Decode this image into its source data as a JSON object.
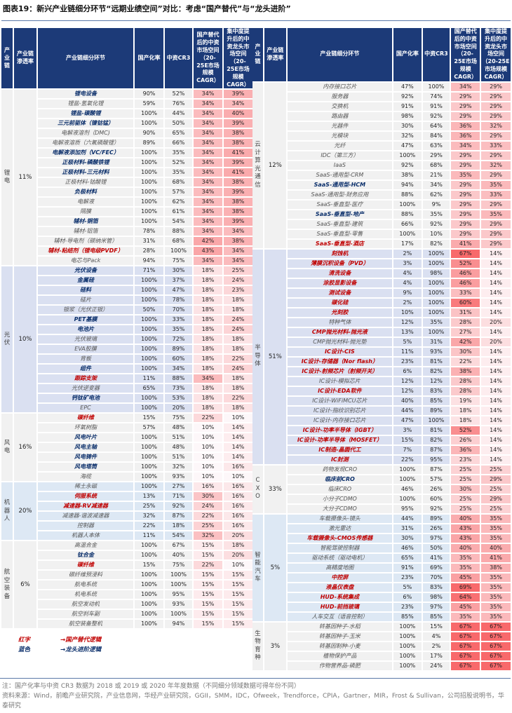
{
  "title": "图表19：新兴产业链细分环节“远期业绩空间”对比：考虑“国产替代”与“龙头进阶”",
  "headers": [
    "产业链",
    "产业链渗透率",
    "产业链细分环节",
    "国产化率",
    "中资CR3",
    "国产替代后的中资市场空间（20-25E市场规模CAGR）",
    "集中度提升后的中资龙头市场空间（20-25E市场规模CAGR）"
  ],
  "left": [
    {
      "industry": "锂电",
      "cagr": "11%",
      "rows": [
        [
          "锂电设备",
          "90%",
          "52%",
          "34%",
          "39%",
          "b"
        ],
        [
          "锂盐-氢氧化锂",
          "59%",
          "76%",
          "34%",
          "34%",
          "n"
        ],
        [
          "锂盐-碳酸锂",
          "100%",
          "44%",
          "34%",
          "40%",
          "b"
        ],
        [
          "三元前驱体（镍钴锰）",
          "100%",
          "50%",
          "34%",
          "39%",
          "b"
        ],
        [
          "电解液溶剂（DMC)",
          "90%",
          "65%",
          "34%",
          "38%",
          "n"
        ],
        [
          "电解液溶质（六氟磷酸锂）",
          "89%",
          "66%",
          "34%",
          "38%",
          "n"
        ],
        [
          "电解液添加剂（VC/FEC）",
          "100%",
          "35%",
          "34%",
          "41%",
          "b"
        ],
        [
          "正极材料-磷酸铁锂",
          "100%",
          "52%",
          "34%",
          "39%",
          "b"
        ],
        [
          "正极材料-三元材料",
          "100%",
          "35%",
          "34%",
          "41%",
          "b"
        ],
        [
          "正极材料-钴酸锂",
          "100%",
          "68%",
          "34%",
          "38%",
          "n"
        ],
        [
          "负极材料",
          "100%",
          "57%",
          "34%",
          "39%",
          "b"
        ],
        [
          "电解液",
          "100%",
          "62%",
          "34%",
          "38%",
          "n"
        ],
        [
          "隔膜",
          "100%",
          "61%",
          "34%",
          "38%",
          "n"
        ],
        [
          "辅材-铜箔",
          "100%",
          "54%",
          "34%",
          "39%",
          "b"
        ],
        [
          "辅材-铝箔",
          "78%",
          "88%",
          "34%",
          "34%",
          "n"
        ],
        [
          "辅材-导电剂（碳纳米管）",
          "31%",
          "68%",
          "42%",
          "38%",
          "n"
        ],
        [
          "辅材-粘结剂（锂电级PVDF）",
          "28%",
          "100%",
          "43%",
          "34%",
          "r"
        ],
        [
          "电芯与Pack",
          "94%",
          "75%",
          "34%",
          "34%",
          "n"
        ]
      ]
    },
    {
      "industry": "光伏",
      "cagr": "10%",
      "rows": [
        [
          "光伏设备",
          "71%",
          "30%",
          "18%",
          "25%",
          "b"
        ],
        [
          "金属硅",
          "100%",
          "37%",
          "18%",
          "24%",
          "b"
        ],
        [
          "硅料",
          "100%",
          "47%",
          "18%",
          "23%",
          "b"
        ],
        [
          "硅片",
          "100%",
          "78%",
          "18%",
          "18%",
          "n"
        ],
        [
          "银浆（光伏正银）",
          "50%",
          "70%",
          "18%",
          "18%",
          "n"
        ],
        [
          "PET基膜",
          "100%",
          "33%",
          "18%",
          "24%",
          "b"
        ],
        [
          "电池片",
          "100%",
          "35%",
          "18%",
          "24%",
          "b"
        ],
        [
          "光伏玻璃",
          "100%",
          "72%",
          "18%",
          "18%",
          "n"
        ],
        [
          "EVA胶膜",
          "100%",
          "89%",
          "18%",
          "18%",
          "n"
        ],
        [
          "背板",
          "100%",
          "60%",
          "18%",
          "22%",
          "n"
        ],
        [
          "组件",
          "100%",
          "34%",
          "18%",
          "24%",
          "b"
        ],
        [
          "跟踪支架",
          "11%",
          "88%",
          "34%",
          "18%",
          "r"
        ],
        [
          "光伏逆变器",
          "65%",
          "73%",
          "18%",
          "18%",
          "n"
        ],
        [
          "钙钛矿电池",
          "100%",
          "53%",
          "18%",
          "22%",
          "b"
        ],
        [
          "EPC",
          "100%",
          "20%",
          "18%",
          "18%",
          "n"
        ]
      ]
    },
    {
      "industry": "风电",
      "cagr": "16%",
      "rows": [
        [
          "碳纤维",
          "15%",
          "75%",
          "22%",
          "10%",
          "r"
        ],
        [
          "环氧树脂",
          "57%",
          "48%",
          "10%",
          "14%",
          "n"
        ],
        [
          "风电叶片",
          "100%",
          "51%",
          "10%",
          "14%",
          "b"
        ],
        [
          "风电主轴",
          "100%",
          "48%",
          "10%",
          "14%",
          "b"
        ],
        [
          "风电铸件",
          "100%",
          "51%",
          "10%",
          "14%",
          "b"
        ],
        [
          "风电塔筒",
          "100%",
          "32%",
          "10%",
          "16%",
          "b"
        ],
        [
          "海缆",
          "100%",
          "93%",
          "10%",
          "10%",
          "n"
        ]
      ]
    },
    {
      "industry": "机器人",
      "cagr": "20%",
      "rows": [
        [
          "稀土永磁",
          "100%",
          "27%",
          "16%",
          "16%",
          "n"
        ],
        [
          "伺服系统",
          "13%",
          "71%",
          "30%",
          "16%",
          "r"
        ],
        [
          "减速器-RV减速器",
          "25%",
          "92%",
          "24%",
          "16%",
          "r"
        ],
        [
          "减速器-谐波减速器",
          "32%",
          "87%",
          "22%",
          "16%",
          "n"
        ],
        [
          "控制器",
          "22%",
          "18%",
          "25%",
          "16%",
          "n"
        ],
        [
          "机器人本体",
          "11%",
          "54%",
          "32%",
          "20%",
          "n"
        ]
      ]
    },
    {
      "industry": "航空装备",
      "cagr": "6%",
      "rows": [
        [
          "高温合金",
          "100%",
          "67%",
          "15%",
          "18%",
          "n"
        ],
        [
          "钛合金",
          "100%",
          "40%",
          "15%",
          "20%",
          "b"
        ],
        [
          "碳纤维",
          "15%",
          "75%",
          "22%",
          "10%",
          "r"
        ],
        [
          "碳纤维预浸料",
          "100%",
          "100%",
          "15%",
          "15%",
          "n"
        ],
        [
          "航电系统",
          "100%",
          "100%",
          "15%",
          "15%",
          "n"
        ],
        [
          "机电系统",
          "100%",
          "95%",
          "15%",
          "15%",
          "n"
        ],
        [
          "航空发动机",
          "100%",
          "93%",
          "15%",
          "15%",
          "n"
        ],
        [
          "航空刹车副",
          "100%",
          "100%",
          "15%",
          "15%",
          "n"
        ],
        [
          "航空装备整机",
          "100%",
          "94%",
          "15%",
          "15%",
          "n"
        ]
      ]
    }
  ],
  "right": [
    {
      "industry": "云计算光通信",
      "cagr": "12%",
      "rows": [
        [
          "内存接口芯片",
          "47%",
          "100%",
          "34%",
          "29%",
          "n"
        ],
        [
          "服务器",
          "92%",
          "74%",
          "29%",
          "29%",
          "n"
        ],
        [
          "交换机",
          "91%",
          "91%",
          "29%",
          "29%",
          "n"
        ],
        [
          "路由器",
          "98%",
          "92%",
          "29%",
          "29%",
          "n"
        ],
        [
          "光器件",
          "30%",
          "64%",
          "36%",
          "32%",
          "n"
        ],
        [
          "光模块",
          "32%",
          "84%",
          "36%",
          "29%",
          "n"
        ],
        [
          "光纤",
          "47%",
          "63%",
          "34%",
          "33%",
          "n"
        ],
        [
          "IDC（第三方）",
          "100%",
          "29%",
          "29%",
          "29%",
          "n"
        ],
        [
          "IaaS",
          "92%",
          "68%",
          "29%",
          "32%",
          "n"
        ],
        [
          "SaaS-通用型-CRM",
          "38%",
          "21%",
          "35%",
          "29%",
          "n"
        ],
        [
          "SaaS-通用型-HCM",
          "94%",
          "34%",
          "29%",
          "35%",
          "b"
        ],
        [
          "SaaS-通用型-财务应用",
          "88%",
          "62%",
          "29%",
          "33%",
          "n"
        ],
        [
          "SaaS-垂直型-医疗",
          "100%",
          "9%",
          "29%",
          "29%",
          "n"
        ],
        [
          "SaaS-垂直型-地产",
          "88%",
          "35%",
          "29%",
          "35%",
          "b"
        ],
        [
          "SaaS-垂直型-建筑",
          "66%",
          "92%",
          "29%",
          "29%",
          "n"
        ],
        [
          "SaaS-垂直型-零售",
          "100%",
          "10%",
          "29%",
          "29%",
          "n"
        ],
        [
          "SaaS-垂直型-酒店",
          "17%",
          "82%",
          "41%",
          "29%",
          "r"
        ]
      ]
    },
    {
      "industry": "半导体",
      "cagr": "51%",
      "rows": [
        [
          "刻蚀机",
          "2%",
          "100%",
          "67%",
          "14%",
          "r"
        ],
        [
          "薄膜沉积设备（PVD）",
          "3%",
          "100%",
          "52%",
          "14%",
          "r"
        ],
        [
          "清洗设备",
          "4%",
          "98%",
          "46%",
          "14%",
          "r"
        ],
        [
          "涂胶显影设备",
          "4%",
          "100%",
          "46%",
          "14%",
          "r"
        ],
        [
          "测试设备",
          "9%",
          "100%",
          "33%",
          "14%",
          "r"
        ],
        [
          "碳化硅",
          "2%",
          "100%",
          "60%",
          "14%",
          "r"
        ],
        [
          "光刻胶",
          "10%",
          "100%",
          "31%",
          "14%",
          "r"
        ],
        [
          "特种气体",
          "12%",
          "35%",
          "28%",
          "20%",
          "n"
        ],
        [
          "CMP抛光材料-抛光液",
          "13%",
          "100%",
          "27%",
          "14%",
          "r"
        ],
        [
          "CMP抛光材料-抛光垫",
          "5%",
          "31%",
          "42%",
          "20%",
          "n"
        ],
        [
          "IC设计-CIS",
          "11%",
          "93%",
          "30%",
          "14%",
          "r"
        ],
        [
          "IC设计-存储器（Nor flash）",
          "23%",
          "81%",
          "22%",
          "14%",
          "r"
        ],
        [
          "IC设计-射频芯片（射频开关）",
          "6%",
          "82%",
          "38%",
          "14%",
          "r"
        ],
        [
          "IC设计-模拟芯片",
          "12%",
          "12%",
          "28%",
          "14%",
          "n"
        ],
        [
          "IC设计-EDA软件",
          "12%",
          "83%",
          "28%",
          "14%",
          "r"
        ],
        [
          "IC设计-WiFiMCU芯片",
          "40%",
          "85%",
          "19%",
          "14%",
          "n"
        ],
        [
          "IC设计-指纹识别芯片",
          "44%",
          "89%",
          "18%",
          "14%",
          "n"
        ],
        [
          "IC设计-内存接口芯片",
          "47%",
          "100%",
          "18%",
          "14%",
          "n"
        ],
        [
          "IC设计-功率半导体（IGBT）",
          "3%",
          "81%",
          "52%",
          "14%",
          "r"
        ],
        [
          "IC设计-功率半导体（MOSFET）",
          "15%",
          "82%",
          "26%",
          "14%",
          "r"
        ],
        [
          "IC制造-晶圆代工",
          "7%",
          "87%",
          "36%",
          "14%",
          "r"
        ],
        [
          "IC封测",
          "22%",
          "95%",
          "23%",
          "14%",
          "r"
        ]
      ]
    },
    {
      "industry": "CXO",
      "cagr": "33%",
      "rows": [
        [
          "药物发现CRO",
          "100%",
          "87%",
          "25%",
          "25%",
          "n"
        ],
        [
          "临床前CRO",
          "100%",
          "57%",
          "25%",
          "29%",
          "b"
        ],
        [
          "临床CRO",
          "46%",
          "26%",
          "30%",
          "25%",
          "n"
        ],
        [
          "小分子CDMO",
          "100%",
          "60%",
          "25%",
          "29%",
          "n"
        ],
        [
          "大分子CDMO",
          "95%",
          "92%",
          "25%",
          "25%",
          "n"
        ]
      ]
    },
    {
      "industry": "智能汽车",
      "cagr": "5%",
      "rows": [
        [
          "车载摄像头-镜头",
          "44%",
          "89%",
          "40%",
          "35%",
          "n"
        ],
        [
          "激光雷达",
          "31%",
          "26%",
          "43%",
          "35%",
          "n"
        ],
        [
          "车载摄像头-CMOS传感器",
          "30%",
          "97%",
          "43%",
          "35%",
          "r"
        ],
        [
          "智能驾驶控制器",
          "46%",
          "50%",
          "40%",
          "40%",
          "n"
        ],
        [
          "驱动系统（驱动电机）",
          "65%",
          "41%",
          "35%",
          "41%",
          "n"
        ],
        [
          "高精度地图",
          "91%",
          "69%",
          "35%",
          "38%",
          "n"
        ],
        [
          "中控屏",
          "23%",
          "70%",
          "45%",
          "35%",
          "r"
        ],
        [
          "液晶仪表盘",
          "5%",
          "83%",
          "69%",
          "35%",
          "r"
        ],
        [
          "HUD-系统集成",
          "6%",
          "98%",
          "64%",
          "35%",
          "r"
        ],
        [
          "HUD-前挡玻璃",
          "23%",
          "97%",
          "45%",
          "35%",
          "r"
        ],
        [
          "人车交互（语音控制）",
          "85%",
          "85%",
          "35%",
          "35%",
          "n"
        ]
      ]
    },
    {
      "industry": "生物育种",
      "cagr": "3%",
      "rows": [
        [
          "转基因种子-水稻",
          "100%",
          "15%",
          "67%",
          "67%",
          "n"
        ],
        [
          "转基因种子-玉米",
          "100%",
          "4%",
          "67%",
          "67%",
          "n"
        ],
        [
          "转基因制种-小麦",
          "100%",
          "2%",
          "67%",
          "67%",
          "n"
        ],
        [
          "植物保护产品",
          "100%",
          "17%",
          "67%",
          "67%",
          "n"
        ],
        [
          "作物营养品-磷肥",
          "100%",
          "24%",
          "67%",
          "67%",
          "n"
        ]
      ]
    }
  ],
  "legend": [
    {
      "key": "红字",
      "text": "→国产替代逻辑",
      "color": "#c00000"
    },
    {
      "key": "蓝色",
      "text": "→龙头进阶逻辑",
      "color": "#0b2f6b"
    }
  ],
  "notes": [
    "注：国产化率与中资 CR3 数据为 2018 或 2019 或 2020 年年度数据（不同细分领域数据可得年份不同）",
    "资料来源：Wind，前瞻产业研究院，产业信息网，华经产业研究院，GGII，SMM，IDC，Ofweek，Trendforce，CPIA，Gartner，MIR，Frost & Sullivan，公司招股说明书，华泰研究"
  ]
}
